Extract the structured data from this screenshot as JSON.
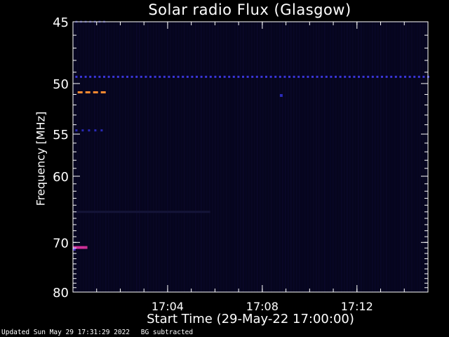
{
  "chart_data": {
    "type": "heatmap",
    "title": "Solar radio Flux (Glasgow)",
    "xlabel": "Start Time (29-May-22 17:00:00)",
    "ylabel": "Frequency [MHz]",
    "x_unit": "minutes after 17:00:00",
    "xlim": [
      0,
      15
    ],
    "ylim": [
      45,
      80
    ],
    "x_ticks": [
      {
        "value": 4,
        "label": "17:04"
      },
      {
        "value": 8,
        "label": "17:08"
      },
      {
        "value": 12,
        "label": "17:12"
      }
    ],
    "y_ticks": [
      {
        "value": 45,
        "label": "45"
      },
      {
        "value": 50,
        "label": "50"
      },
      {
        "value": 55,
        "label": "55"
      },
      {
        "value": 60,
        "label": "60"
      },
      {
        "value": 70,
        "label": "70"
      },
      {
        "value": 80,
        "label": "80"
      }
    ],
    "background_color": "#06051e",
    "bands": [
      {
        "freq": 49.4,
        "t_start": 0.1,
        "t_end": 15.0,
        "color": "#3a35d8",
        "dash": true
      },
      {
        "freq": 50.8,
        "t_start": 0.2,
        "t_end": 1.4,
        "color": "#ff8a30",
        "dash": true
      },
      {
        "freq": 54.6,
        "t_start": 0.1,
        "t_end": 1.4,
        "color": "#2a2ab8",
        "dash": true
      },
      {
        "freq": 65.0,
        "t_start": 0.1,
        "t_end": 5.8,
        "color": "#141438",
        "dash": false
      },
      {
        "freq": 70.9,
        "t_start": 0.0,
        "t_end": 0.5,
        "color": "#d0309a",
        "dash": false
      },
      {
        "freq": 45.0,
        "t_start": 0.1,
        "t_end": 1.4,
        "color": "#1d1d6a",
        "dash": true
      }
    ],
    "points": [
      {
        "time": 8.8,
        "freq": 51.1,
        "color": "#2a2ab8"
      },
      {
        "time": 0.55,
        "freq": 70.9,
        "color": "#c83092"
      },
      {
        "time": 0.05,
        "freq": 71.2,
        "color": "#5a3ae0"
      }
    ]
  },
  "footer": {
    "updated": "Updated Sun May 29 17:31:29 2022",
    "note": "BG subtracted"
  }
}
